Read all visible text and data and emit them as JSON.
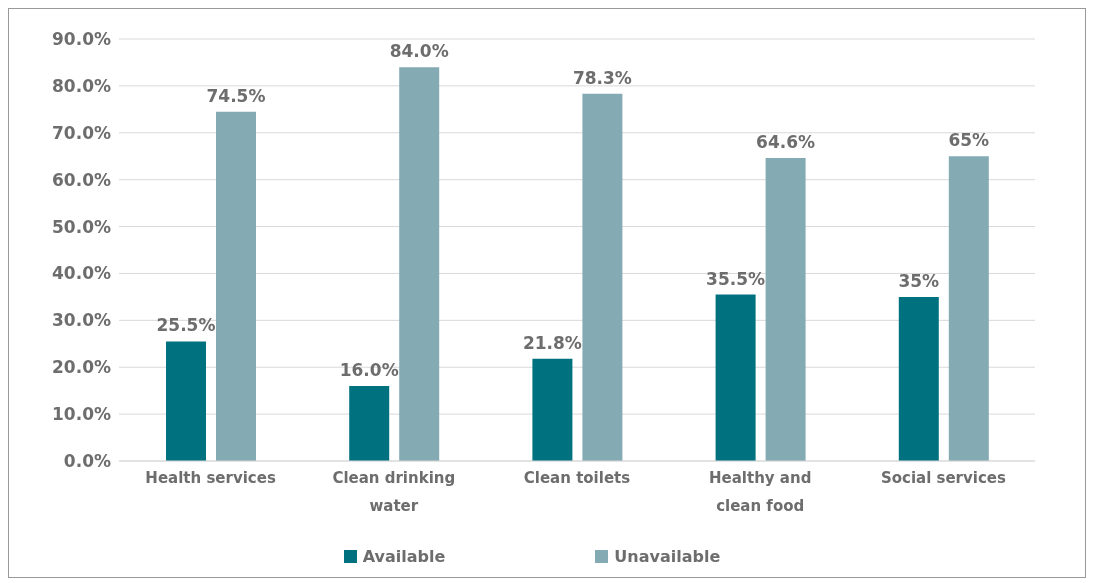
{
  "chart_data": {
    "type": "bar",
    "categories": [
      "Health services",
      "Clean drinking water",
      "Clean toilets",
      "Healthy and clean food",
      "Social services"
    ],
    "series": [
      {
        "name": "Available",
        "color": "#00727f",
        "values": [
          25.5,
          16.0,
          21.8,
          35.5,
          35
        ],
        "value_labels": [
          "25.5%",
          "16.0%",
          "21.8%",
          "35.5%",
          "35%"
        ]
      },
      {
        "name": "Unavailable",
        "color": "#84abb3",
        "values": [
          74.5,
          84.0,
          78.3,
          64.6,
          65
        ],
        "value_labels": [
          "74.5%",
          "84.0%",
          "78.3%",
          "64.6%",
          "65%"
        ]
      }
    ],
    "ylim": [
      0,
      90
    ],
    "yticks": [
      {
        "value": 0,
        "label": "0.0%"
      },
      {
        "value": 10,
        "label": "10.0%"
      },
      {
        "value": 20,
        "label": "20.0%"
      },
      {
        "value": 30,
        "label": "30.0%"
      },
      {
        "value": 40,
        "label": "40.0%"
      },
      {
        "value": 50,
        "label": "50.0%"
      },
      {
        "value": 60,
        "label": "60.0%"
      },
      {
        "value": 70,
        "label": "70.0%"
      },
      {
        "value": 80,
        "label": "80.0%"
      },
      {
        "value": 90,
        "label": "90.0%"
      }
    ],
    "grid": "y",
    "legend": "bottom"
  }
}
